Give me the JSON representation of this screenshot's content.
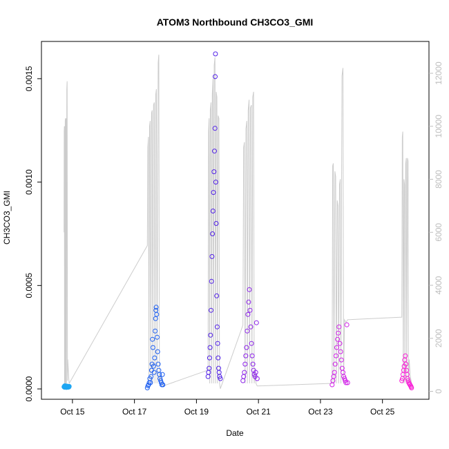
{
  "chart_data": {
    "type": "scatter",
    "title": "ATOM3 Northbound CH3CO3_GMI",
    "xlabel": "Date",
    "ylabel": "CH3CO3_GMI",
    "xlim": [
      "2016-10-14T00:00",
      "2016-10-26T12:00"
    ],
    "ylim": [
      -5e-05,
      0.00168
    ],
    "y_ticks": [
      {
        "value": 0.0,
        "label": "0.0000"
      },
      {
        "value": 0.0005,
        "label": "0.0005"
      },
      {
        "value": 0.001,
        "label": "0.0010"
      },
      {
        "value": 0.0015,
        "label": "0.0015"
      }
    ],
    "x_ticks": [
      {
        "value": "2016-10-15",
        "label": "Oct 15"
      },
      {
        "value": "2016-10-17",
        "label": "Oct 17"
      },
      {
        "value": "2016-10-19",
        "label": "Oct 19"
      },
      {
        "value": "2016-10-21",
        "label": "Oct 21"
      },
      {
        "value": "2016-10-23",
        "label": "Oct 23"
      },
      {
        "value": "2016-10-25",
        "label": "Oct 25"
      }
    ],
    "y2_ticks": [
      {
        "value": 0,
        "label": "0"
      },
      {
        "value": 2000,
        "label": "2000"
      },
      {
        "value": 4000,
        "label": "4000"
      },
      {
        "value": 6000,
        "label": "6000"
      },
      {
        "value": 8000,
        "label": "8000"
      },
      {
        "value": 10000,
        "label": "10000"
      },
      {
        "value": 12000,
        "label": "12000"
      }
    ],
    "y2lim": [
      -300,
      13200
    ],
    "grid": false,
    "point_color_scale": [
      "#00a2ff",
      "#0055ff",
      "#5a1fe6",
      "#9a1fe8",
      "#e21fe8",
      "#ff20cc"
    ],
    "altitude_line_color": "#cccccc",
    "flights": [
      {
        "start": "2016-10-14T17:30",
        "end": "2016-10-14T21:30",
        "color": "#1fa6f2",
        "points": [
          [
            0.0,
            1e-05
          ],
          [
            0.05,
            1.2e-05
          ],
          [
            0.1,
            8e-06
          ],
          [
            0.15,
            1.5e-05
          ],
          [
            0.2,
            1.1e-05
          ],
          [
            0.25,
            9e-06
          ],
          [
            0.3,
            1.3e-05
          ],
          [
            0.35,
            1e-05
          ],
          [
            0.4,
            1.4e-05
          ],
          [
            0.45,
            7e-06
          ],
          [
            0.5,
            1.2e-05
          ],
          [
            0.55,
            9e-06
          ],
          [
            0.6,
            1.1e-05
          ],
          [
            0.65,
            1.3e-05
          ],
          [
            0.7,
            1e-05
          ],
          [
            0.75,
            8e-06
          ],
          [
            0.8,
            1.2e-05
          ],
          [
            0.85,
            1e-05
          ],
          [
            0.9,
            1.1e-05
          ],
          [
            0.95,
            9e-06
          ],
          [
            1.0,
            1.2e-05
          ]
        ],
        "altitude": [
          [
            0.0,
            6000
          ],
          [
            0.03,
            9800
          ],
          [
            0.06,
            10000
          ],
          [
            0.09,
            300
          ],
          [
            0.12,
            9900
          ],
          [
            0.16,
            10000
          ],
          [
            0.19,
            200
          ],
          [
            0.23,
            10200
          ],
          [
            0.28,
            10300
          ],
          [
            0.32,
            200
          ],
          [
            0.36,
            10100
          ],
          [
            0.42,
            10300
          ],
          [
            0.47,
            300
          ],
          [
            0.53,
            11400
          ],
          [
            0.6,
            11700
          ],
          [
            0.66,
            400
          ],
          [
            0.72,
            1200
          ],
          [
            0.8,
            900
          ],
          [
            0.9,
            500
          ],
          [
            1.0,
            300
          ]
        ]
      },
      {
        "start": "2016-10-17T10:00",
        "end": "2016-10-17T22:00",
        "color": "#1c5ef0",
        "points": [
          [
            0.0,
            5e-06
          ],
          [
            0.04,
            1.5e-05
          ],
          [
            0.08,
            2e-05
          ],
          [
            0.12,
            3e-05
          ],
          [
            0.16,
            5e-05
          ],
          [
            0.2,
            3e-05
          ],
          [
            0.24,
            6e-05
          ],
          [
            0.27,
            9e-05
          ],
          [
            0.3,
            0.00012
          ],
          [
            0.33,
            0.00024
          ],
          [
            0.36,
            0.0002
          ],
          [
            0.4,
            0.00011
          ],
          [
            0.44,
            8e-05
          ],
          [
            0.47,
            0.00015
          ],
          [
            0.5,
            0.00028
          ],
          [
            0.53,
            0.00034
          ],
          [
            0.55,
            0.00038
          ],
          [
            0.57,
            0.000395
          ],
          [
            0.6,
            0.00036
          ],
          [
            0.63,
            0.00025
          ],
          [
            0.66,
            0.00018
          ],
          [
            0.7,
            0.00012
          ],
          [
            0.74,
            9e-05
          ],
          [
            0.78,
            7e-05
          ],
          [
            0.82,
            5e-05
          ],
          [
            0.86,
            4e-05
          ],
          [
            0.9,
            3e-05
          ],
          [
            0.94,
            2e-05
          ],
          [
            0.97,
            7e-05
          ],
          [
            1.0,
            2e-05
          ]
        ],
        "altitude": [
          [
            0.0,
            5500
          ],
          [
            0.03,
            9200
          ],
          [
            0.07,
            9600
          ],
          [
            0.1,
            400
          ],
          [
            0.14,
            10000
          ],
          [
            0.18,
            10200
          ],
          [
            0.22,
            300
          ],
          [
            0.27,
            10500
          ],
          [
            0.31,
            10600
          ],
          [
            0.35,
            300
          ],
          [
            0.4,
            10800
          ],
          [
            0.45,
            10900
          ],
          [
            0.49,
            300
          ],
          [
            0.54,
            11200
          ],
          [
            0.58,
            11400
          ],
          [
            0.62,
            300
          ],
          [
            0.7,
            12400
          ],
          [
            0.74,
            12700
          ],
          [
            0.78,
            300
          ],
          [
            0.85,
            600
          ],
          [
            0.92,
            400
          ],
          [
            1.0,
            200
          ]
        ]
      },
      {
        "start": "2016-10-19T09:00",
        "end": "2016-10-19T18:30",
        "color": "#5120e8",
        "points": [
          [
            0.0,
            6e-05
          ],
          [
            0.04,
            8e-05
          ],
          [
            0.08,
            0.0001
          ],
          [
            0.12,
            0.00015
          ],
          [
            0.16,
            0.0002
          ],
          [
            0.2,
            0.00026
          ],
          [
            0.24,
            0.00038
          ],
          [
            0.28,
            0.00052
          ],
          [
            0.32,
            0.00064
          ],
          [
            0.36,
            0.00075
          ],
          [
            0.4,
            0.00086
          ],
          [
            0.44,
            0.00095
          ],
          [
            0.48,
            0.00105
          ],
          [
            0.52,
            0.00115
          ],
          [
            0.56,
            0.00126
          ],
          [
            0.58,
            0.00151
          ],
          [
            0.6,
            0.00162
          ],
          [
            0.63,
            0.001
          ],
          [
            0.66,
            0.0008
          ],
          [
            0.7,
            0.00045
          ],
          [
            0.74,
            0.0003
          ],
          [
            0.78,
            0.00022
          ],
          [
            0.82,
            0.00015
          ],
          [
            0.86,
            0.0001
          ],
          [
            0.9,
            8e-05
          ],
          [
            0.94,
            6e-05
          ],
          [
            1.0,
            5e-05
          ]
        ],
        "altitude": [
          [
            0.0,
            800
          ],
          [
            0.04,
            9800
          ],
          [
            0.08,
            10300
          ],
          [
            0.12,
            300
          ],
          [
            0.18,
            10600
          ],
          [
            0.24,
            10900
          ],
          [
            0.28,
            300
          ],
          [
            0.34,
            11200
          ],
          [
            0.4,
            11800
          ],
          [
            0.44,
            300
          ],
          [
            0.5,
            12300
          ],
          [
            0.56,
            12600
          ],
          [
            0.6,
            300
          ],
          [
            0.66,
            11300
          ],
          [
            0.72,
            11100
          ],
          [
            0.76,
            300
          ],
          [
            0.82,
            10400
          ],
          [
            0.88,
            10300
          ],
          [
            0.93,
            300
          ],
          [
            1.0,
            100
          ]
        ]
      },
      {
        "start": "2016-10-20T12:00",
        "end": "2016-10-20T23:00",
        "color": "#8d22ea",
        "points": [
          [
            0.0,
            4e-05
          ],
          [
            0.05,
            6e-05
          ],
          [
            0.1,
            8e-05
          ],
          [
            0.15,
            0.00012
          ],
          [
            0.2,
            0.00016
          ],
          [
            0.25,
            0.0002
          ],
          [
            0.3,
            0.00028
          ],
          [
            0.35,
            0.00036
          ],
          [
            0.4,
            0.00042
          ],
          [
            0.45,
            0.00048
          ],
          [
            0.5,
            0.00038
          ],
          [
            0.55,
            0.0003
          ],
          [
            0.6,
            0.00022
          ],
          [
            0.65,
            0.00016
          ],
          [
            0.7,
            0.00012
          ],
          [
            0.75,
            9e-05
          ],
          [
            0.8,
            7e-05
          ],
          [
            0.85,
            6e-05
          ],
          [
            0.9,
            8e-05
          ],
          [
            0.95,
            0.00032
          ],
          [
            1.0,
            5e-05
          ]
        ],
        "altitude": [
          [
            0.0,
            2500
          ],
          [
            0.05,
            9200
          ],
          [
            0.1,
            9400
          ],
          [
            0.15,
            300
          ],
          [
            0.21,
            9900
          ],
          [
            0.27,
            10200
          ],
          [
            0.31,
            300
          ],
          [
            0.37,
            10600
          ],
          [
            0.43,
            11000
          ],
          [
            0.47,
            300
          ],
          [
            0.53,
            10700
          ],
          [
            0.59,
            10800
          ],
          [
            0.63,
            300
          ],
          [
            0.69,
            11100
          ],
          [
            0.75,
            11300
          ],
          [
            0.79,
            300
          ],
          [
            0.85,
            700
          ],
          [
            0.92,
            300
          ],
          [
            1.0,
            200
          ]
        ]
      },
      {
        "start": "2016-10-23T09:00",
        "end": "2016-10-23T21:00",
        "color": "#d11fe8",
        "points": [
          [
            0.0,
            2e-05
          ],
          [
            0.05,
            4e-05
          ],
          [
            0.1,
            6e-05
          ],
          [
            0.15,
            8e-05
          ],
          [
            0.2,
            0.00012
          ],
          [
            0.25,
            0.00016
          ],
          [
            0.3,
            0.0002
          ],
          [
            0.35,
            0.00024
          ],
          [
            0.4,
            0.00027
          ],
          [
            0.45,
            0.0003
          ],
          [
            0.5,
            0.00022
          ],
          [
            0.55,
            0.00018
          ],
          [
            0.6,
            0.00014
          ],
          [
            0.65,
            0.0001
          ],
          [
            0.7,
            8e-05
          ],
          [
            0.75,
            6e-05
          ],
          [
            0.8,
            5e-05
          ],
          [
            0.85,
            4e-05
          ],
          [
            0.9,
            3e-05
          ],
          [
            0.95,
            0.00031
          ],
          [
            1.0,
            3e-05
          ]
        ],
        "altitude": [
          [
            0.0,
            300
          ],
          [
            0.04,
            8500
          ],
          [
            0.08,
            8600
          ],
          [
            0.12,
            300
          ],
          [
            0.18,
            8300
          ],
          [
            0.23,
            8100
          ],
          [
            0.27,
            300
          ],
          [
            0.33,
            7200
          ],
          [
            0.38,
            7000
          ],
          [
            0.42,
            300
          ],
          [
            0.48,
            7800
          ],
          [
            0.53,
            8000
          ],
          [
            0.57,
            300
          ],
          [
            0.64,
            11900
          ],
          [
            0.7,
            12200
          ],
          [
            0.74,
            300
          ],
          [
            0.8,
            2700
          ],
          [
            0.9,
            2600
          ],
          [
            1.0,
            2700
          ]
        ]
      },
      {
        "start": "2016-10-25T15:00",
        "end": "2016-10-25T22:30",
        "color": "#f81fd6",
        "points": [
          [
            0.0,
            4e-05
          ],
          [
            0.06,
            5e-05
          ],
          [
            0.12,
            7e-05
          ],
          [
            0.18,
            9e-05
          ],
          [
            0.24,
            0.00011
          ],
          [
            0.3,
            0.00014
          ],
          [
            0.36,
            0.00016
          ],
          [
            0.42,
            0.00012
          ],
          [
            0.48,
            9e-05
          ],
          [
            0.54,
            7e-05
          ],
          [
            0.6,
            5e-05
          ],
          [
            0.66,
            4e-05
          ],
          [
            0.72,
            3e-05
          ],
          [
            0.78,
            2.5e-05
          ],
          [
            0.84,
            2e-05
          ],
          [
            0.9,
            1.5e-05
          ],
          [
            0.96,
            1e-05
          ],
          [
            1.0,
            5e-06
          ]
        ],
        "altitude": [
          [
            0.0,
            2800
          ],
          [
            0.05,
            9600
          ],
          [
            0.1,
            9800
          ],
          [
            0.15,
            300
          ],
          [
            0.22,
            8000
          ],
          [
            0.28,
            7800
          ],
          [
            0.32,
            300
          ],
          [
            0.4,
            8600
          ],
          [
            0.46,
            8800
          ],
          [
            0.5,
            300
          ],
          [
            0.58,
            8800
          ],
          [
            0.64,
            8700
          ],
          [
            0.68,
            300
          ],
          [
            0.76,
            1200
          ],
          [
            0.86,
            600
          ],
          [
            1.0,
            300
          ]
        ]
      }
    ]
  }
}
